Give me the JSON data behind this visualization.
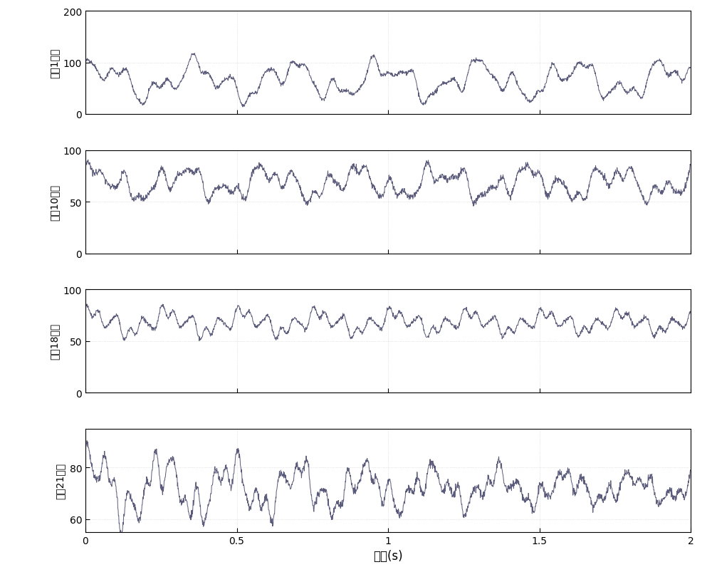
{
  "panels": [
    {
      "ylabel": "测点1位移",
      "ylim": [
        0,
        200
      ],
      "yticks": [
        0,
        100,
        200
      ],
      "mean": 65,
      "components": [
        {
          "amp": 25,
          "freq": 3.2,
          "phase": 0.5
        },
        {
          "amp": 18,
          "freq": 8.5,
          "phase": 1.2
        },
        {
          "amp": 8,
          "freq": 15.0,
          "phase": 0.3
        },
        {
          "amp": 5,
          "freq": 22.0,
          "phase": 2.1
        }
      ],
      "noise_std": 2.0,
      "decay": 0.0
    },
    {
      "ylabel": "测点10位移",
      "ylim": [
        0,
        100
      ],
      "yticks": [
        0,
        50,
        100
      ],
      "mean": 68,
      "components": [
        {
          "amp": 10,
          "freq": 3.5,
          "phase": 0.8
        },
        {
          "amp": 8,
          "freq": 9.0,
          "phase": 0.5
        },
        {
          "amp": 5,
          "freq": 16.0,
          "phase": 1.5
        },
        {
          "amp": 3,
          "freq": 24.0,
          "phase": 0.7
        }
      ],
      "noise_std": 1.5,
      "decay": 0.0
    },
    {
      "ylabel": "测点18位移",
      "ylim": [
        0,
        100
      ],
      "yticks": [
        0,
        50,
        100
      ],
      "mean": 68,
      "components": [
        {
          "amp": 8,
          "freq": 4.0,
          "phase": 1.0
        },
        {
          "amp": 6,
          "freq": 12.0,
          "phase": 0.3
        },
        {
          "amp": 5,
          "freq": 20.0,
          "phase": 1.8
        },
        {
          "amp": 3,
          "freq": 28.0,
          "phase": 0.9
        }
      ],
      "noise_std": 1.0,
      "decay": 0.15
    },
    {
      "ylabel": "测点21位移",
      "ylim": [
        55,
        95
      ],
      "yticks": [
        60,
        80
      ],
      "mean": 72,
      "components": [
        {
          "amp": 10,
          "freq": 4.5,
          "phase": 0.6
        },
        {
          "amp": 6,
          "freq": 14.0,
          "phase": 1.1
        },
        {
          "amp": 4,
          "freq": 22.0,
          "phase": 0.4
        },
        {
          "amp": 3,
          "freq": 30.0,
          "phase": 1.7
        }
      ],
      "noise_std": 0.8,
      "decay": 0.5
    }
  ],
  "xlabel": "时间(s)",
  "xlim": [
    0,
    2
  ],
  "xticks": [
    0,
    0.5,
    1,
    1.5,
    2
  ],
  "xtick_labels": [
    "0",
    "0.5",
    "1",
    "1.5",
    "2"
  ],
  "line_color": "#5a5a7a",
  "line_width": 0.7,
  "dt": 0.001,
  "duration": 2.0,
  "bg_color": "#ffffff",
  "fig_bg": "#ffffff",
  "grid_color": "#d0d0d0",
  "fontsize_ylabel": 10,
  "fontsize_xlabel": 12,
  "fontsize_tick": 10
}
